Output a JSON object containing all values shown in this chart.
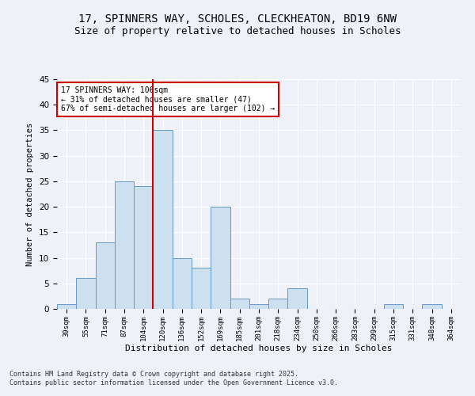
{
  "title1": "17, SPINNERS WAY, SCHOLES, CLECKHEATON, BD19 6NW",
  "title2": "Size of property relative to detached houses in Scholes",
  "xlabel": "Distribution of detached houses by size in Scholes",
  "ylabel": "Number of detached properties",
  "categories": [
    "39sqm",
    "55sqm",
    "71sqm",
    "87sqm",
    "104sqm",
    "120sqm",
    "136sqm",
    "152sqm",
    "169sqm",
    "185sqm",
    "201sqm",
    "218sqm",
    "234sqm",
    "250sqm",
    "266sqm",
    "283sqm",
    "299sqm",
    "315sqm",
    "331sqm",
    "348sqm",
    "364sqm"
  ],
  "values": [
    1,
    6,
    13,
    25,
    24,
    35,
    10,
    8,
    20,
    2,
    1,
    2,
    4,
    0,
    0,
    0,
    0,
    1,
    0,
    1,
    0
  ],
  "bar_color": "#cce0f0",
  "bar_edge_color": "#6699cc",
  "vline_x_index": 4,
  "vline_color": "#cc0000",
  "annotation_text": "17 SPINNERS WAY: 106sqm\n← 31% of detached houses are smaller (47)\n67% of semi-detached houses are larger (102) →",
  "annotation_box_color": "#ffffff",
  "annotation_box_edge": "#cc0000",
  "ylim": [
    0,
    45
  ],
  "yticks": [
    0,
    5,
    10,
    15,
    20,
    25,
    30,
    35,
    40,
    45
  ],
  "footer1": "Contains HM Land Registry data © Crown copyright and database right 2025.",
  "footer2": "Contains public sector information licensed under the Open Government Licence v3.0.",
  "bg_color": "#eef2f8",
  "plot_bg_color": "#eef2f8",
  "title1_fontsize": 10,
  "title2_fontsize": 9
}
